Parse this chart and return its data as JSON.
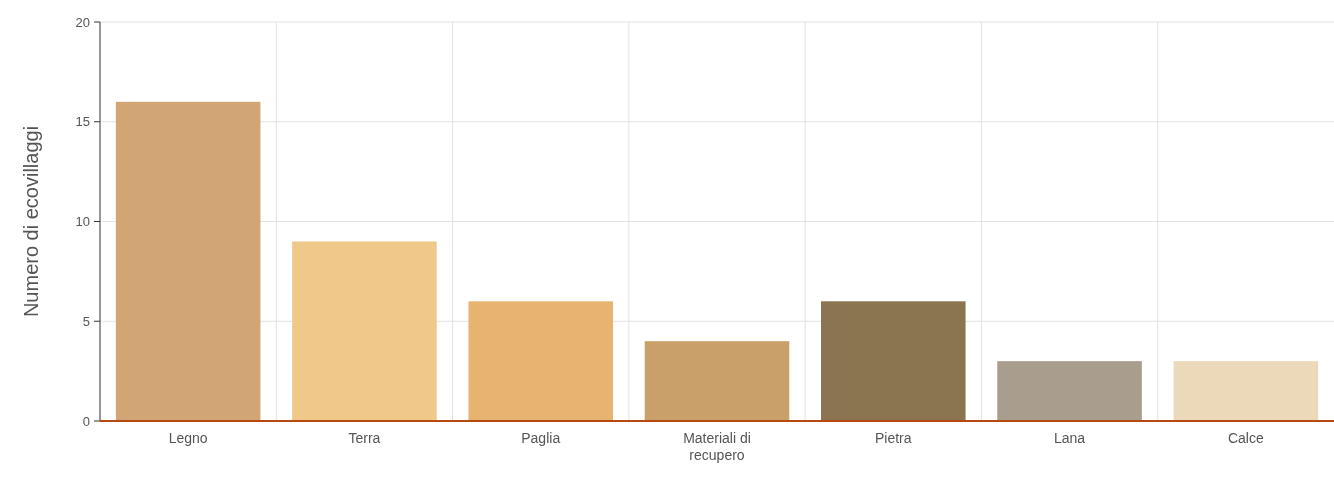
{
  "chart_data": {
    "type": "bar",
    "ylabel": "Numero di ecovillaggi",
    "categories": [
      "Legno",
      "Terra",
      "Paglia",
      "Materiali di recupero",
      "Pietra",
      "Lana",
      "Calce"
    ],
    "values": [
      16,
      9,
      6,
      4,
      6,
      3,
      3
    ],
    "colors": [
      "#d2a574",
      "#f0c88a",
      "#e6b470",
      "#c9a069",
      "#8b7450",
      "#a99d8e",
      "#ecd9ba"
    ],
    "ylim": [
      0,
      20
    ],
    "yticks": [
      0,
      5,
      10,
      15,
      20
    ],
    "grid": true
  }
}
